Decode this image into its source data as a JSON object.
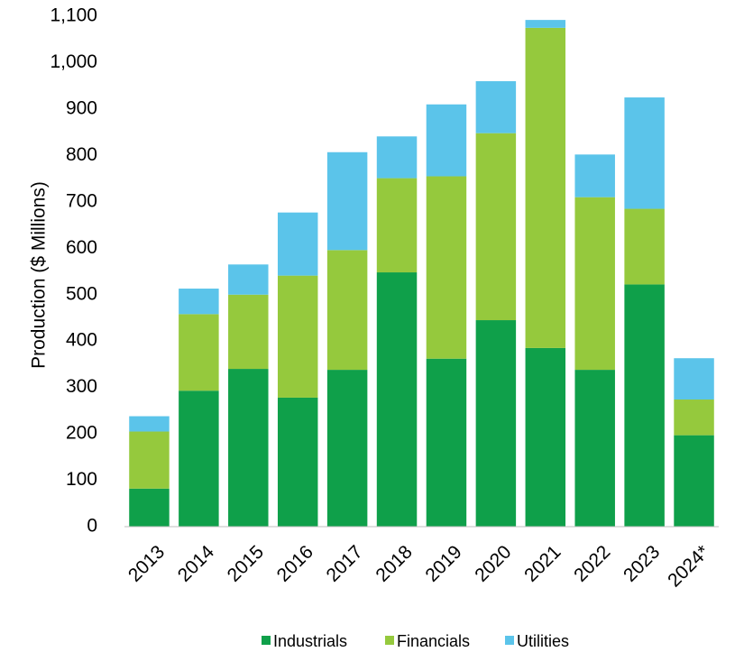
{
  "chart_data": {
    "type": "bar",
    "stacked": true,
    "title": "",
    "xlabel": "",
    "ylabel": "Production  ($ Millions)",
    "ylim": [
      0,
      1100
    ],
    "yticks": [
      0,
      100,
      200,
      300,
      400,
      500,
      600,
      700,
      800,
      900,
      1000,
      1100
    ],
    "ytick_labels": [
      "0",
      "100",
      "200",
      "300",
      "400",
      "500",
      "600",
      "700",
      "800",
      "900",
      "1,000",
      "1,100"
    ],
    "grid": false,
    "legend_position": "bottom",
    "categories": [
      "2013",
      "2014",
      "2015",
      "2016",
      "2017",
      "2018",
      "2019",
      "2020",
      "2021",
      "2022",
      "2023",
      "2024*"
    ],
    "series": [
      {
        "name": "Industrials",
        "color": "#0fa04a",
        "values": [
          82,
          293,
          340,
          278,
          338,
          548,
          362,
          445,
          385,
          338,
          522,
          197
        ]
      },
      {
        "name": "Financials",
        "color": "#95c93d",
        "values": [
          123,
          165,
          160,
          263,
          258,
          203,
          393,
          403,
          690,
          372,
          163,
          77
        ]
      },
      {
        "name": "Utilities",
        "color": "#5bc4ea",
        "values": [
          33,
          55,
          65,
          136,
          211,
          90,
          155,
          112,
          17,
          92,
          240,
          89
        ]
      }
    ]
  }
}
